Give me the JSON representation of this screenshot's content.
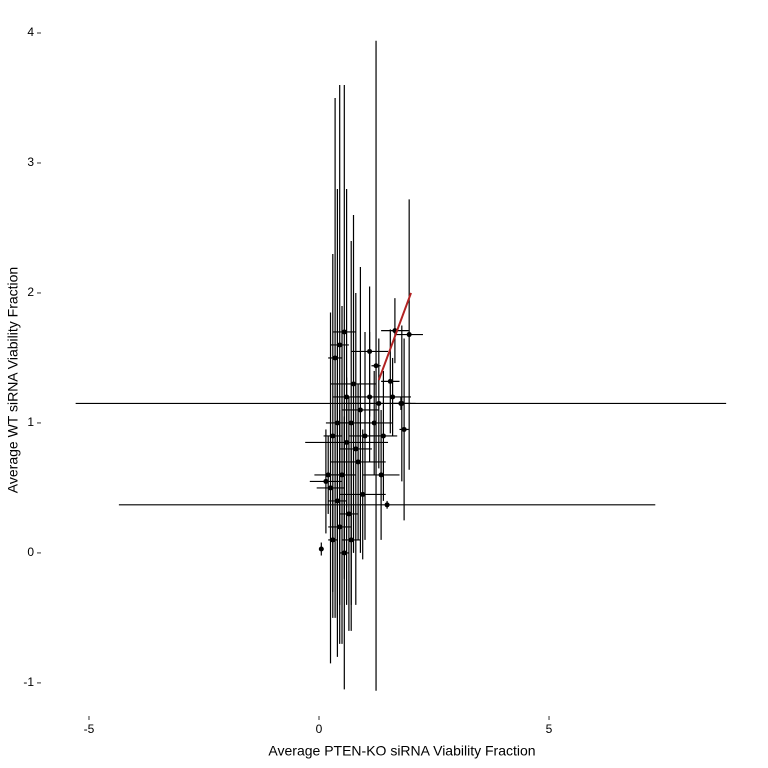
{
  "chart_data": {
    "type": "errorbar-scatter",
    "x_label": "Average PTEN-KO siRNA Viability Fraction",
    "y_label": "Average WT siRNA Viability Fraction",
    "xlim": [
      -5.63,
      9.26
    ],
    "ylim": [
      -1.17,
      4.1
    ],
    "xticks": [
      -5,
      0,
      5
    ],
    "yticks": [
      -1,
      0,
      1,
      2,
      3,
      4
    ],
    "grid": false,
    "color": "#000000",
    "x": [
      0.35,
      0.45,
      0.55,
      0.3,
      0.6,
      0.7,
      0.5,
      0.4,
      0.65,
      0.8,
      0.9,
      1.0,
      0.25,
      0.45,
      0.75,
      1.1,
      0.2,
      0.05,
      0.3,
      0.55,
      0.85,
      1.2,
      1.3,
      0.6,
      0.15,
      1.4,
      1.6,
      1.8,
      1.85,
      1.24,
      1.78,
      1.48,
      1.96,
      1.65,
      1.1,
      0.95,
      0.4,
      0.7,
      1.35,
      1.55
    ],
    "y": [
      1.5,
      1.6,
      1.7,
      0.9,
      1.2,
      1.0,
      0.6,
      0.4,
      0.3,
      0.8,
      1.1,
      0.9,
      0.5,
      0.2,
      1.3,
      1.2,
      0.6,
      0.03,
      0.1,
      0.0,
      0.7,
      1.0,
      1.15,
      0.85,
      0.55,
      0.9,
      1.2,
      1.15,
      0.95,
      1.44,
      1.15,
      0.37,
      1.68,
      1.71,
      1.55,
      0.45,
      1.0,
      0.1,
      0.6,
      1.32
    ],
    "xerr": [
      0.15,
      0.2,
      0.25,
      0.2,
      0.3,
      0.4,
      0.3,
      0.2,
      0.2,
      0.35,
      0.4,
      0.35,
      0.3,
      0.25,
      0.5,
      0.3,
      0.3,
      0.05,
      0.1,
      0.1,
      0.6,
      0.4,
      0.8,
      0.9,
      0.35,
      0.3,
      0.4,
      0.2,
      0.1,
      0.1,
      7.07,
      5.83,
      0.3,
      0.3,
      0.4,
      0.5,
      0.25,
      0.2,
      0.4,
      0.2
    ],
    "yerr": [
      2.0,
      2.0,
      1.9,
      1.4,
      1.6,
      1.4,
      1.3,
      0.9,
      0.9,
      1.2,
      1.1,
      0.8,
      1.35,
      0.9,
      1.3,
      0.5,
      0.3,
      0.05,
      0.4,
      1.05,
      0.6,
      0.4,
      0.5,
      0.5,
      0.4,
      0.5,
      0.3,
      0.6,
      0.7,
      2.5,
      0.05,
      0.03,
      1.04,
      0.25,
      0.5,
      0.5,
      1.8,
      0.7,
      0.5,
      0.4
    ],
    "reference_line": {
      "x": [
        1.3,
        2.0
      ],
      "y": [
        1.33,
        2.0
      ],
      "color": "#b22222"
    }
  }
}
